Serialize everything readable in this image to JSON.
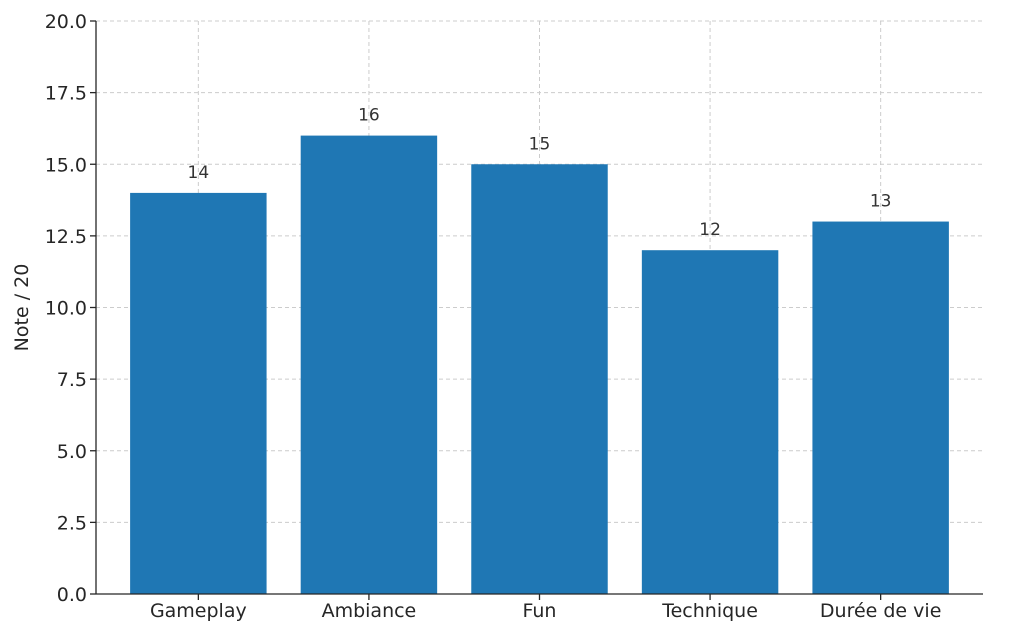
{
  "chart_data": {
    "type": "bar",
    "categories": [
      "Gameplay",
      "Ambiance",
      "Fun",
      "Technique",
      "Durée de vie"
    ],
    "values": [
      14,
      16,
      15,
      12,
      13
    ],
    "value_labels": [
      "14",
      "16",
      "15",
      "12",
      "13"
    ],
    "title": "",
    "xlabel": "",
    "ylabel": "Note / 20",
    "ylim": [
      0,
      20
    ],
    "yticks": [
      0,
      2.5,
      5,
      7.5,
      10,
      12.5,
      15,
      17.5,
      20
    ],
    "ytick_labels": [
      "0.0",
      "2.5",
      "5.0",
      "7.5",
      "10.0",
      "12.5",
      "15.0",
      "17.5",
      "20.0"
    ],
    "grid": true,
    "bar_color": "#1f77b4"
  }
}
